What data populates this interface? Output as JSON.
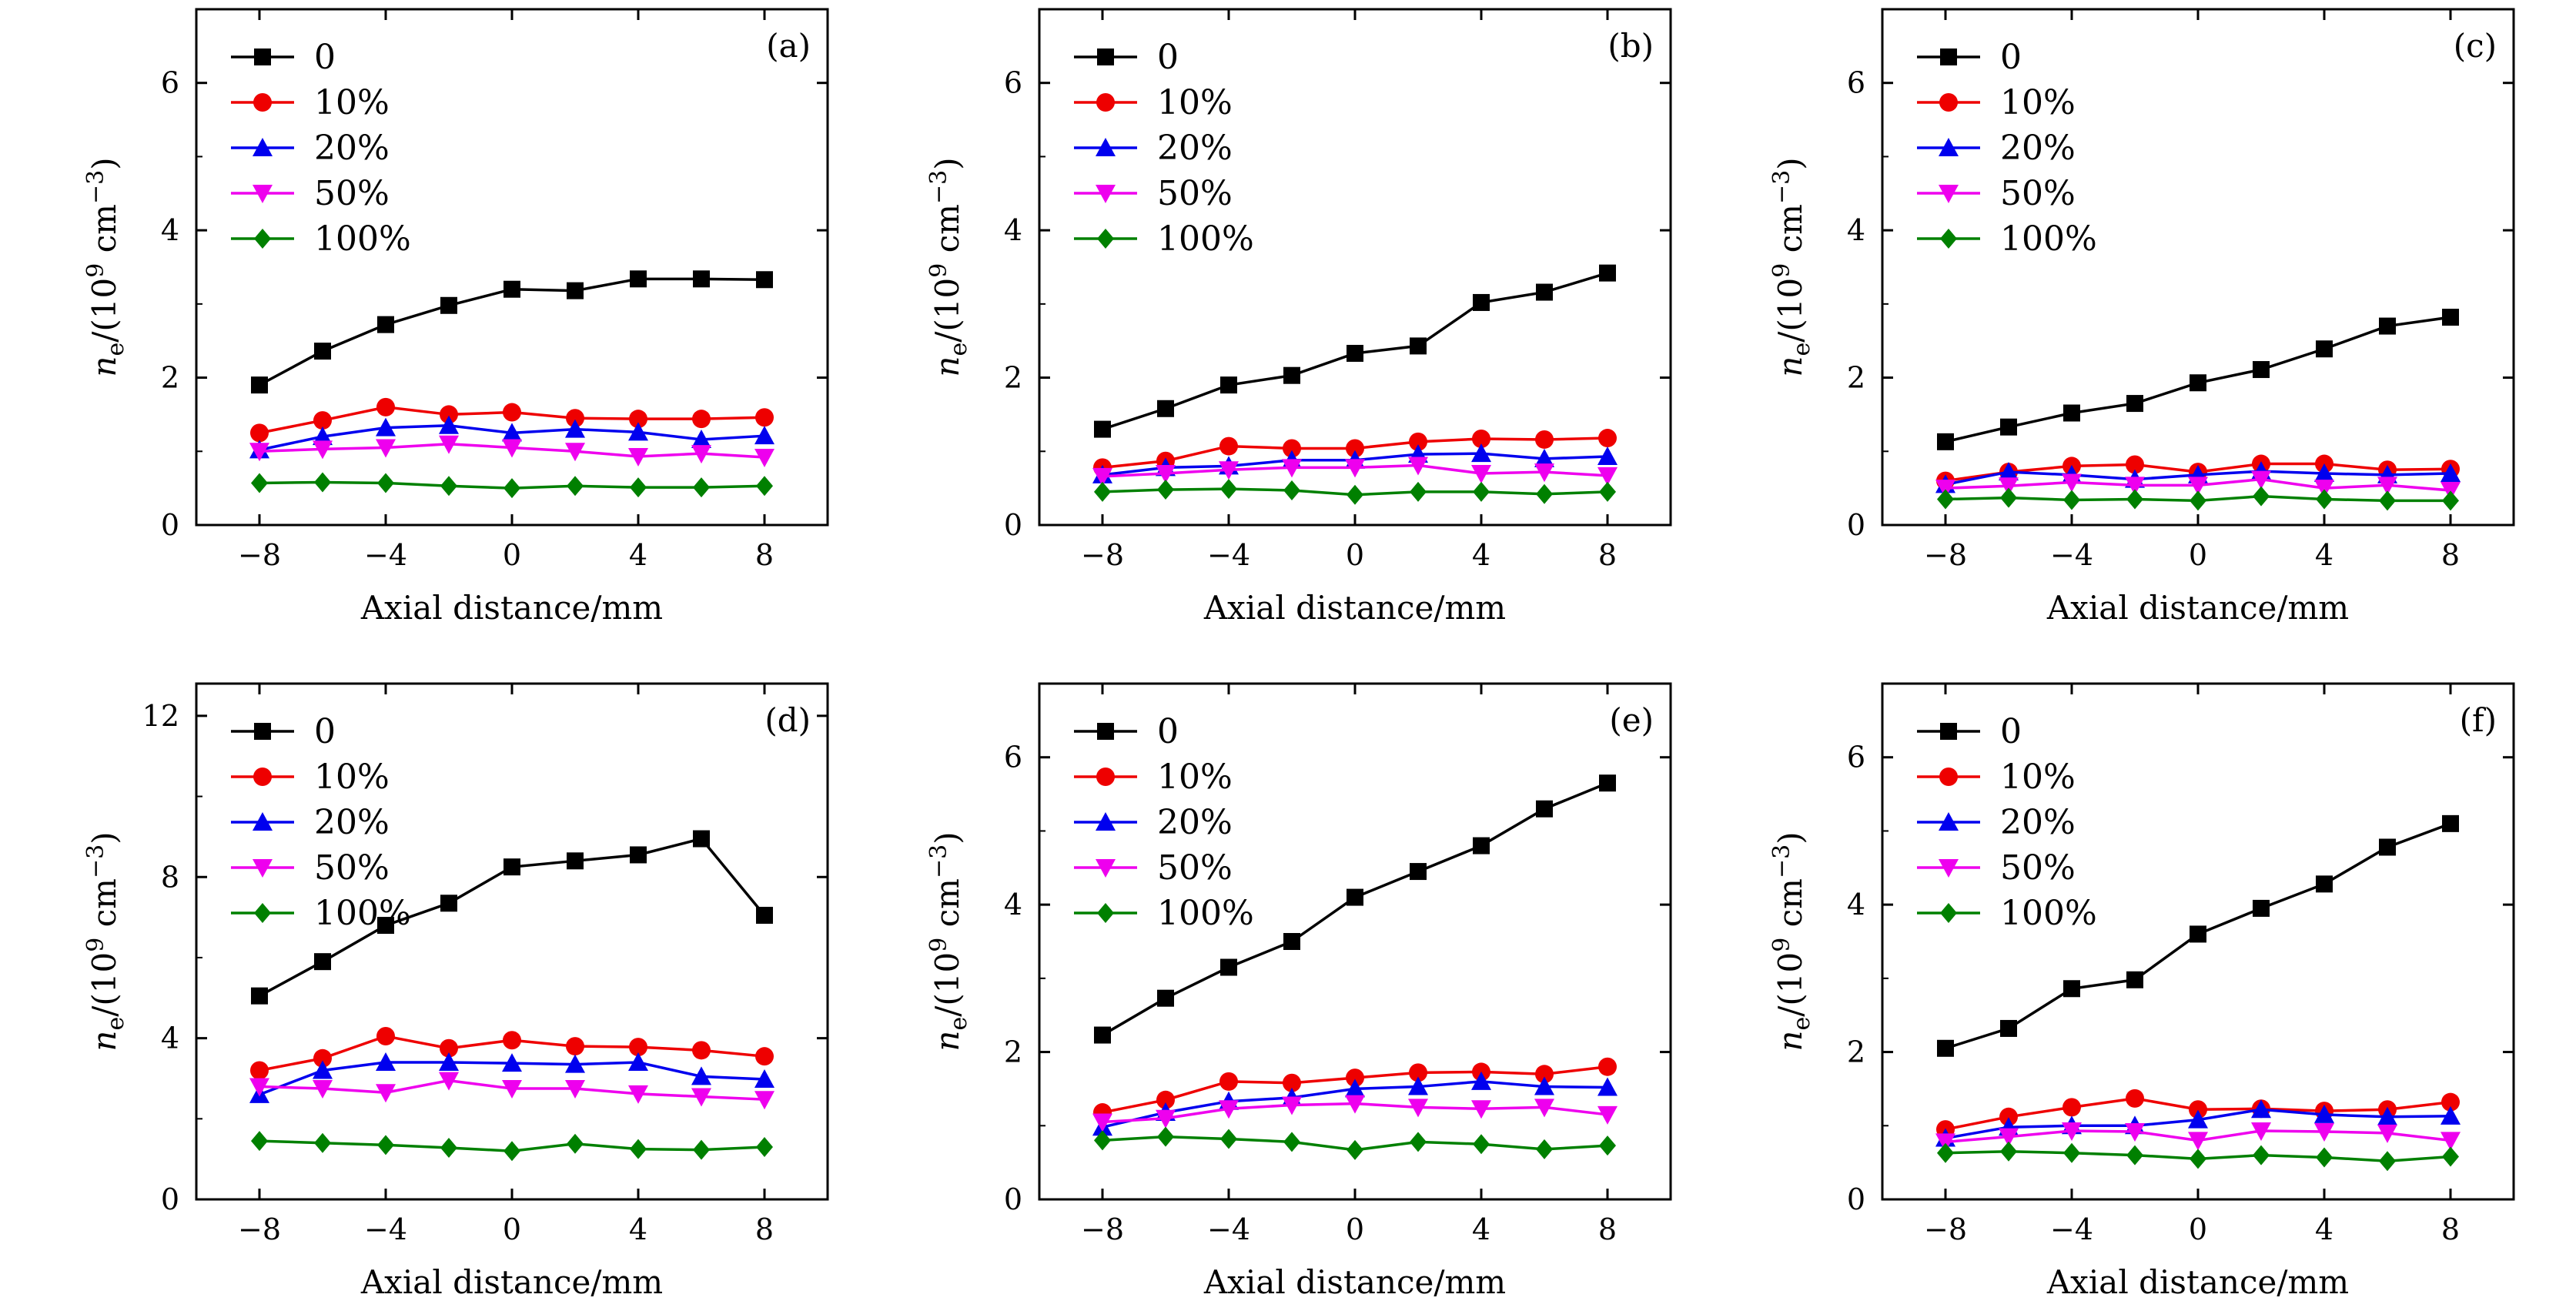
{
  "chart_data": [
    {
      "type": "line",
      "panel_label": "(a)",
      "xlabel": "Axial distance/mm",
      "ylabel": {
        "n": "n",
        "sub": "e",
        "mid": "/(10",
        "sup": "9",
        "unit": " cm",
        "unit_sup": "−3",
        "close": ")"
      },
      "xlim": [
        -10,
        10
      ],
      "ylim": [
        0,
        7
      ],
      "xticks": [
        -8,
        -4,
        0,
        4,
        8
      ],
      "yticks": [
        0,
        2,
        4,
        6
      ],
      "legend_position": "top-left",
      "x": [
        -8,
        -6,
        -4,
        -2,
        0,
        2,
        4,
        6,
        8
      ],
      "series": [
        {
          "name": "0",
          "values": [
            1.9,
            2.36,
            2.72,
            2.98,
            3.2,
            3.18,
            3.34,
            3.34,
            3.33
          ]
        },
        {
          "name": "10%",
          "values": [
            1.25,
            1.42,
            1.6,
            1.5,
            1.53,
            1.45,
            1.44,
            1.44,
            1.46
          ]
        },
        {
          "name": "20%",
          "values": [
            1.02,
            1.2,
            1.32,
            1.35,
            1.25,
            1.3,
            1.26,
            1.16,
            1.21
          ]
        },
        {
          "name": "50%",
          "values": [
            1.0,
            1.03,
            1.05,
            1.1,
            1.05,
            1.0,
            0.93,
            0.97,
            0.92
          ]
        },
        {
          "name": "100%",
          "values": [
            0.57,
            0.58,
            0.57,
            0.53,
            0.5,
            0.53,
            0.51,
            0.51,
            0.53
          ]
        }
      ]
    },
    {
      "type": "line",
      "panel_label": "(b)",
      "xlabel": "Axial distance/mm",
      "ylabel": {
        "n": "n",
        "sub": "e",
        "mid": "/(10",
        "sup": "9",
        "unit": " cm",
        "unit_sup": "−3",
        "close": ")"
      },
      "xlim": [
        -10,
        10
      ],
      "ylim": [
        0,
        7
      ],
      "xticks": [
        -8,
        -4,
        0,
        4,
        8
      ],
      "yticks": [
        0,
        2,
        4,
        6
      ],
      "legend_position": "top-left",
      "x": [
        -8,
        -6,
        -4,
        -2,
        0,
        2,
        4,
        6,
        8
      ],
      "series": [
        {
          "name": "0",
          "values": [
            1.3,
            1.58,
            1.9,
            2.03,
            2.33,
            2.43,
            3.02,
            3.16,
            3.42
          ]
        },
        {
          "name": "10%",
          "values": [
            0.78,
            0.87,
            1.07,
            1.04,
            1.04,
            1.13,
            1.17,
            1.16,
            1.18
          ]
        },
        {
          "name": "20%",
          "values": [
            0.68,
            0.78,
            0.8,
            0.88,
            0.88,
            0.96,
            0.97,
            0.9,
            0.93
          ]
        },
        {
          "name": "50%",
          "values": [
            0.66,
            0.7,
            0.75,
            0.78,
            0.78,
            0.81,
            0.7,
            0.72,
            0.67
          ]
        },
        {
          "name": "100%",
          "values": [
            0.45,
            0.48,
            0.49,
            0.47,
            0.41,
            0.45,
            0.45,
            0.42,
            0.45
          ]
        }
      ]
    },
    {
      "type": "line",
      "panel_label": "(c)",
      "xlabel": "Axial distance/mm",
      "ylabel": {
        "n": "n",
        "sub": "e",
        "mid": "/(10",
        "sup": "9",
        "unit": " cm",
        "unit_sup": "−3",
        "close": ")"
      },
      "xlim": [
        -10,
        10
      ],
      "ylim": [
        0,
        7
      ],
      "xticks": [
        -8,
        -4,
        0,
        4,
        8
      ],
      "yticks": [
        0,
        2,
        4,
        6
      ],
      "legend_position": "top-left",
      "x": [
        -8,
        -6,
        -4,
        -2,
        0,
        2,
        4,
        6,
        8
      ],
      "series": [
        {
          "name": "0",
          "values": [
            1.13,
            1.33,
            1.52,
            1.65,
            1.93,
            2.11,
            2.39,
            2.7,
            2.82
          ]
        },
        {
          "name": "10%",
          "values": [
            0.6,
            0.72,
            0.8,
            0.82,
            0.72,
            0.83,
            0.83,
            0.75,
            0.76
          ]
        },
        {
          "name": "20%",
          "values": [
            0.55,
            0.72,
            0.68,
            0.62,
            0.68,
            0.73,
            0.7,
            0.68,
            0.7
          ]
        },
        {
          "name": "50%",
          "values": [
            0.5,
            0.53,
            0.58,
            0.54,
            0.54,
            0.62,
            0.5,
            0.54,
            0.47
          ]
        },
        {
          "name": "100%",
          "values": [
            0.35,
            0.37,
            0.34,
            0.35,
            0.33,
            0.39,
            0.35,
            0.33,
            0.33
          ]
        }
      ]
    },
    {
      "type": "line",
      "panel_label": "(d)",
      "xlabel": "Axial distance/mm",
      "ylabel": {
        "n": "n",
        "sub": "e",
        "mid": "/(10",
        "sup": "9",
        "unit": " cm",
        "unit_sup": "−3",
        "close": ")"
      },
      "xlim": [
        -10,
        10
      ],
      "ylim": [
        0,
        12.8
      ],
      "xticks": [
        -8,
        -4,
        0,
        4,
        8
      ],
      "yticks": [
        0,
        4,
        8,
        12
      ],
      "legend_position": "top-left",
      "x": [
        -8,
        -6,
        -4,
        -2,
        0,
        2,
        4,
        6,
        8
      ],
      "series": [
        {
          "name": "0",
          "values": [
            5.05,
            5.9,
            6.8,
            7.35,
            8.25,
            8.4,
            8.55,
            8.95,
            7.05
          ]
        },
        {
          "name": "10%",
          "values": [
            3.2,
            3.5,
            4.05,
            3.75,
            3.95,
            3.8,
            3.78,
            3.7,
            3.55
          ]
        },
        {
          "name": "20%",
          "values": [
            2.6,
            3.2,
            3.4,
            3.4,
            3.38,
            3.35,
            3.4,
            3.05,
            2.98
          ]
        },
        {
          "name": "50%",
          "values": [
            2.8,
            2.75,
            2.65,
            2.95,
            2.75,
            2.75,
            2.62,
            2.55,
            2.48
          ]
        },
        {
          "name": "100%",
          "values": [
            1.45,
            1.4,
            1.35,
            1.28,
            1.2,
            1.38,
            1.25,
            1.23,
            1.3
          ]
        }
      ]
    },
    {
      "type": "line",
      "panel_label": "(e)",
      "xlabel": "Axial distance/mm",
      "ylabel": {
        "n": "n",
        "sub": "e",
        "mid": "/(10",
        "sup": "9",
        "unit": " cm",
        "unit_sup": "−3",
        "close": ")"
      },
      "xlim": [
        -10,
        10
      ],
      "ylim": [
        0,
        7
      ],
      "xticks": [
        -8,
        -4,
        0,
        4,
        8
      ],
      "yticks": [
        0,
        2,
        4,
        6
      ],
      "legend_position": "top-left",
      "x": [
        -8,
        -6,
        -4,
        -2,
        0,
        2,
        4,
        6,
        8
      ],
      "series": [
        {
          "name": "0",
          "values": [
            2.23,
            2.73,
            3.15,
            3.5,
            4.1,
            4.45,
            4.8,
            5.3,
            5.65
          ]
        },
        {
          "name": "10%",
          "values": [
            1.18,
            1.35,
            1.6,
            1.58,
            1.65,
            1.72,
            1.73,
            1.7,
            1.8
          ]
        },
        {
          "name": "20%",
          "values": [
            0.98,
            1.18,
            1.33,
            1.38,
            1.5,
            1.53,
            1.6,
            1.53,
            1.52
          ]
        },
        {
          "name": "50%",
          "values": [
            1.05,
            1.1,
            1.23,
            1.28,
            1.3,
            1.25,
            1.23,
            1.25,
            1.15
          ]
        },
        {
          "name": "100%",
          "values": [
            0.8,
            0.85,
            0.82,
            0.78,
            0.67,
            0.78,
            0.75,
            0.68,
            0.73
          ]
        }
      ]
    },
    {
      "type": "line",
      "panel_label": "(f)",
      "xlabel": "Axial distance/mm",
      "ylabel": {
        "n": "n",
        "sub": "e",
        "mid": "/(10",
        "sup": "9",
        "unit": " cm",
        "unit_sup": "−3",
        "close": ")"
      },
      "xlim": [
        -10,
        10
      ],
      "ylim": [
        0,
        7
      ],
      "xticks": [
        -8,
        -4,
        0,
        4,
        8
      ],
      "yticks": [
        0,
        2,
        4,
        6
      ],
      "legend_position": "top-left",
      "x": [
        -8,
        -6,
        -4,
        -2,
        0,
        2,
        4,
        6,
        8
      ],
      "series": [
        {
          "name": "0",
          "values": [
            2.05,
            2.32,
            2.86,
            2.98,
            3.6,
            3.95,
            4.28,
            4.78,
            5.1
          ]
        },
        {
          "name": "10%",
          "values": [
            0.95,
            1.12,
            1.25,
            1.37,
            1.22,
            1.23,
            1.2,
            1.22,
            1.32
          ]
        },
        {
          "name": "20%",
          "values": [
            0.83,
            0.98,
            1.0,
            1.0,
            1.08,
            1.22,
            1.15,
            1.12,
            1.13
          ]
        },
        {
          "name": "50%",
          "values": [
            0.78,
            0.85,
            0.93,
            0.92,
            0.8,
            0.93,
            0.92,
            0.9,
            0.8
          ]
        },
        {
          "name": "100%",
          "values": [
            0.63,
            0.65,
            0.63,
            0.6,
            0.55,
            0.6,
            0.57,
            0.52,
            0.58
          ]
        }
      ]
    }
  ],
  "series_styles": [
    {
      "color": "#000000",
      "marker": "square"
    },
    {
      "color": "#ee0000",
      "marker": "circle"
    },
    {
      "color": "#0000ee",
      "marker": "triangle-up"
    },
    {
      "color": "#ee00ee",
      "marker": "triangle-down"
    },
    {
      "color": "#008000",
      "marker": "diamond"
    }
  ]
}
